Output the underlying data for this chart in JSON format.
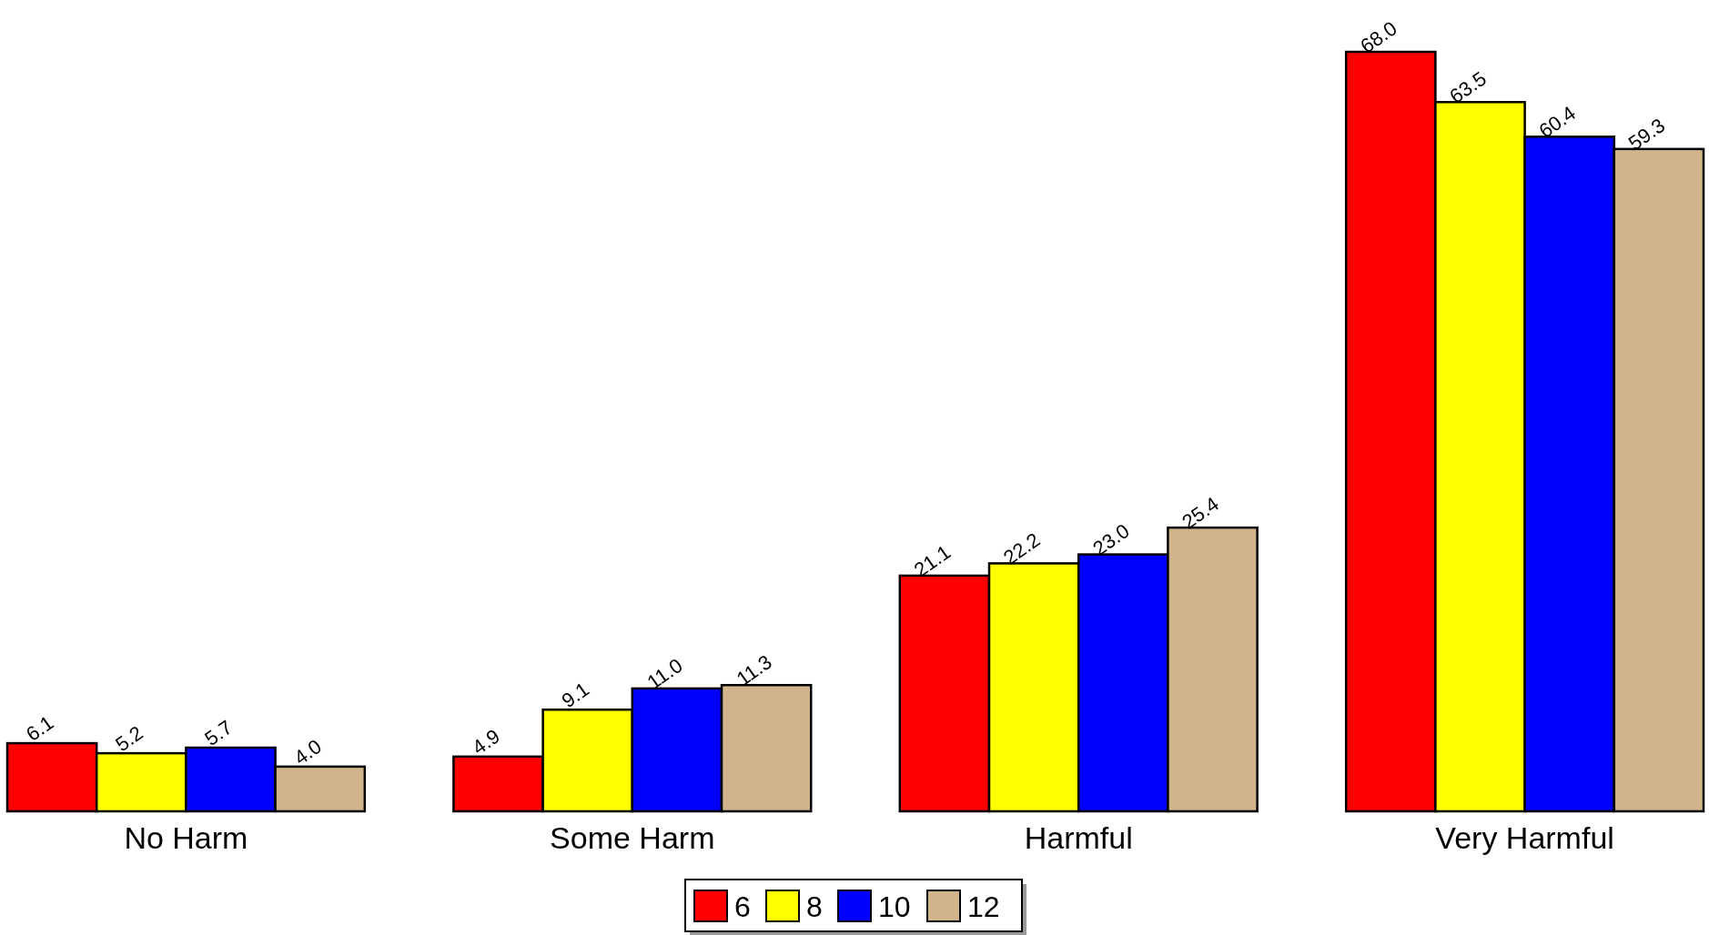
{
  "chart_data": {
    "type": "bar",
    "categories": [
      "No Harm",
      "Some Harm",
      "Harmful",
      "Very Harmful"
    ],
    "series": [
      {
        "name": "6",
        "color": "#ff0000",
        "values": [
          6.1,
          4.9,
          21.1,
          68.0
        ],
        "value_labels": [
          "6.1",
          "4.9",
          "21.1",
          "68.0"
        ]
      },
      {
        "name": "8",
        "color": "#ffff00",
        "values": [
          5.2,
          9.1,
          22.2,
          63.5
        ],
        "value_labels": [
          "5.2",
          "9.1",
          "22.2",
          "63.5"
        ]
      },
      {
        "name": "10",
        "color": "#0000ff",
        "values": [
          5.7,
          11.0,
          23.0,
          60.4
        ],
        "value_labels": [
          "5.7",
          "11.0",
          "23.0",
          "60.4"
        ]
      },
      {
        "name": "12",
        "color": "#d2b48c",
        "values": [
          4.0,
          11.3,
          25.4,
          59.3
        ],
        "value_labels": [
          "4.0",
          "11.3",
          "25.4",
          "59.3"
        ]
      }
    ],
    "legend": "bottom"
  }
}
